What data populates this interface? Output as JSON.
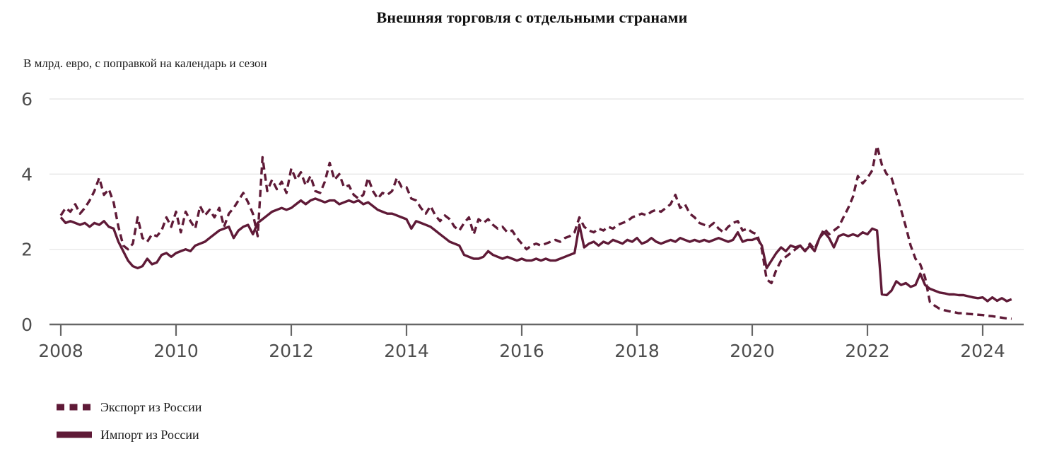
{
  "title": "Внешняя торговля с отдельными странами",
  "subtitle": "В млрд. евро, с поправкой на календарь и сезон",
  "colors": {
    "series": "#5f1a37",
    "grid": "#e8e8e8",
    "axis": "#666666",
    "tick_label": "#4d4d4d",
    "text": "#111111",
    "background": "#ffffff"
  },
  "chart_data": {
    "type": "line",
    "title": "Внешняя торговля с отдельными странами",
    "subtitle": "В млрд. евро, с поправкой на календарь и сезон",
    "unit": "млрд евро",
    "frequency": "monthly",
    "x_start_year": 2008,
    "x_start_month": 1,
    "x_end_label": "2024-07",
    "xlim": [
      2008,
      2024.75
    ],
    "ylim": [
      0,
      6
    ],
    "y_ticks": [
      0,
      2,
      4,
      6
    ],
    "x_tick_years": [
      2008,
      2010,
      2012,
      2014,
      2016,
      2018,
      2020,
      2022,
      2024
    ],
    "grid": "horizontal",
    "legend_position": "bottom-left",
    "series": [
      {
        "name": "Экспорт из России",
        "style": "dashed",
        "values": [
          2.9,
          3.1,
          3.0,
          3.2,
          2.95,
          3.1,
          3.3,
          3.55,
          3.9,
          3.45,
          3.6,
          3.25,
          2.6,
          2.1,
          2.0,
          2.15,
          2.85,
          2.3,
          2.2,
          2.4,
          2.35,
          2.5,
          2.85,
          2.6,
          3.0,
          2.45,
          3.0,
          2.75,
          2.55,
          3.15,
          2.9,
          3.05,
          2.85,
          3.1,
          2.6,
          2.95,
          3.1,
          3.3,
          3.5,
          3.25,
          2.95,
          2.35,
          4.45,
          3.55,
          3.85,
          3.6,
          3.8,
          3.5,
          4.15,
          3.85,
          4.05,
          3.7,
          3.95,
          3.55,
          3.5,
          3.8,
          4.3,
          3.85,
          4.0,
          3.65,
          3.7,
          3.45,
          3.35,
          3.45,
          3.9,
          3.55,
          3.35,
          3.5,
          3.45,
          3.55,
          3.9,
          3.65,
          3.65,
          3.35,
          3.3,
          3.1,
          2.95,
          3.15,
          2.9,
          2.75,
          2.9,
          2.8,
          2.6,
          2.5,
          2.7,
          2.85,
          2.4,
          2.8,
          2.7,
          2.8,
          2.65,
          2.55,
          2.6,
          2.45,
          2.5,
          2.3,
          2.15,
          2.0,
          2.1,
          2.15,
          2.1,
          2.15,
          2.2,
          2.25,
          2.2,
          2.3,
          2.35,
          2.45,
          2.85,
          2.6,
          2.5,
          2.45,
          2.55,
          2.5,
          2.6,
          2.55,
          2.65,
          2.7,
          2.75,
          2.85,
          2.9,
          2.95,
          2.9,
          3.0,
          3.05,
          3.0,
          3.1,
          3.2,
          3.45,
          3.1,
          3.2,
          2.95,
          2.85,
          2.7,
          2.65,
          2.6,
          2.7,
          2.55,
          2.45,
          2.6,
          2.7,
          2.75,
          2.5,
          2.55,
          2.45,
          2.4,
          2.0,
          1.2,
          1.1,
          1.45,
          1.7,
          1.8,
          1.9,
          2.0,
          2.1,
          1.95,
          2.15,
          2.0,
          2.3,
          2.55,
          2.4,
          2.5,
          2.6,
          2.85,
          3.1,
          3.4,
          3.95,
          3.75,
          3.9,
          4.1,
          4.75,
          4.25,
          4.0,
          3.9,
          3.5,
          3.05,
          2.6,
          2.1,
          1.75,
          1.6,
          1.25,
          0.6,
          0.5,
          0.42,
          0.38,
          0.35,
          0.33,
          0.3,
          0.3,
          0.28,
          0.27,
          0.26,
          0.25,
          0.23,
          0.22,
          0.2,
          0.18,
          0.16,
          0.15
        ]
      },
      {
        "name": "Импорт из России",
        "style": "solid",
        "values": [
          2.85,
          2.7,
          2.75,
          2.7,
          2.65,
          2.7,
          2.6,
          2.7,
          2.65,
          2.75,
          2.6,
          2.55,
          2.2,
          1.95,
          1.7,
          1.55,
          1.5,
          1.55,
          1.75,
          1.6,
          1.65,
          1.85,
          1.9,
          1.8,
          1.9,
          1.95,
          2.0,
          1.95,
          2.1,
          2.15,
          2.2,
          2.3,
          2.4,
          2.5,
          2.55,
          2.6,
          2.3,
          2.5,
          2.6,
          2.65,
          2.4,
          2.7,
          2.8,
          2.9,
          3.0,
          3.05,
          3.1,
          3.05,
          3.1,
          3.2,
          3.3,
          3.2,
          3.3,
          3.35,
          3.3,
          3.25,
          3.3,
          3.3,
          3.2,
          3.25,
          3.3,
          3.25,
          3.3,
          3.2,
          3.25,
          3.15,
          3.05,
          3.0,
          2.95,
          2.95,
          2.9,
          2.85,
          2.8,
          2.55,
          2.75,
          2.7,
          2.65,
          2.6,
          2.5,
          2.4,
          2.3,
          2.2,
          2.15,
          2.1,
          1.85,
          1.8,
          1.75,
          1.75,
          1.8,
          1.95,
          1.85,
          1.8,
          1.75,
          1.8,
          1.75,
          1.7,
          1.75,
          1.7,
          1.7,
          1.75,
          1.7,
          1.75,
          1.7,
          1.7,
          1.75,
          1.8,
          1.85,
          1.9,
          2.65,
          2.05,
          2.15,
          2.2,
          2.1,
          2.2,
          2.15,
          2.25,
          2.2,
          2.15,
          2.25,
          2.2,
          2.3,
          2.15,
          2.2,
          2.3,
          2.2,
          2.15,
          2.2,
          2.25,
          2.2,
          2.3,
          2.25,
          2.2,
          2.25,
          2.2,
          2.25,
          2.2,
          2.25,
          2.3,
          2.25,
          2.2,
          2.25,
          2.45,
          2.2,
          2.25,
          2.25,
          2.3,
          2.1,
          1.5,
          1.7,
          1.9,
          2.05,
          1.95,
          2.1,
          2.05,
          2.1,
          1.95,
          2.1,
          1.95,
          2.3,
          2.45,
          2.3,
          2.05,
          2.35,
          2.4,
          2.35,
          2.4,
          2.35,
          2.45,
          2.4,
          2.55,
          2.5,
          0.8,
          0.78,
          0.9,
          1.15,
          1.05,
          1.1,
          1.0,
          1.05,
          1.35,
          1.05,
          0.95,
          0.9,
          0.85,
          0.83,
          0.8,
          0.8,
          0.78,
          0.78,
          0.75,
          0.72,
          0.7,
          0.72,
          0.62,
          0.72,
          0.63,
          0.7,
          0.62,
          0.67
        ]
      }
    ]
  }
}
